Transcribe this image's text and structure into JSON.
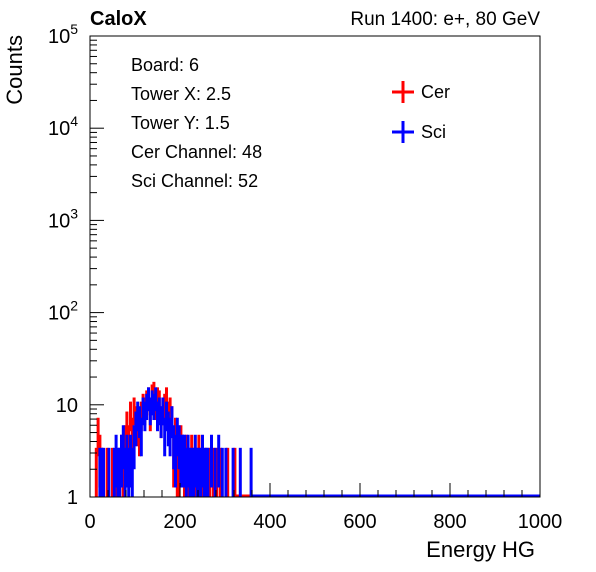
{
  "header": {
    "left_label": "CaloX",
    "right_label": "Run 1400: e+, 80 GeV"
  },
  "info_box": {
    "lines": [
      "Board: 6",
      "Tower X: 2.5",
      "Tower Y: 1.5",
      "Cer Channel: 48",
      "Sci Channel: 52"
    ]
  },
  "colors": {
    "cer": "#ff0000",
    "sci": "#0000ff",
    "axis": "#000000"
  },
  "chart_data": {
    "type": "histogram",
    "title": "",
    "xlabel": "Energy HG",
    "ylabel": "Counts",
    "xlim": [
      0,
      1000
    ],
    "ylim": [
      1,
      100000
    ],
    "yscale": "log",
    "grid": false,
    "legend_position": "top-right",
    "bin_width": 4,
    "x_ticks": [
      0,
      200,
      400,
      600,
      800,
      1000
    ],
    "x_tick_labels": [
      "0",
      "200",
      "400",
      "600",
      "800",
      "1000"
    ],
    "y_ticks": [
      1,
      10,
      100,
      1000,
      10000,
      100000
    ],
    "y_tick_labels": [
      {
        "base": "1",
        "exp": ""
      },
      {
        "base": "10",
        "exp": ""
      },
      {
        "base": "10",
        "exp": "2"
      },
      {
        "base": "10",
        "exp": "3"
      },
      {
        "base": "10",
        "exp": "4"
      },
      {
        "base": "10",
        "exp": "5"
      }
    ],
    "series": [
      {
        "name": "Cer",
        "color": "#ff0000",
        "bins": [
          [
            12,
            2
          ],
          [
            16,
            5
          ],
          [
            20,
            3
          ],
          [
            24,
            2
          ],
          [
            36,
            2
          ],
          [
            48,
            2
          ],
          [
            56,
            2
          ],
          [
            64,
            2
          ],
          [
            68,
            3
          ],
          [
            72,
            1.5
          ],
          [
            76,
            4
          ],
          [
            80,
            6
          ],
          [
            84,
            4
          ],
          [
            88,
            8
          ],
          [
            92,
            5
          ],
          [
            96,
            9
          ],
          [
            100,
            7
          ],
          [
            104,
            6
          ],
          [
            108,
            5
          ],
          [
            112,
            8
          ],
          [
            116,
            10
          ],
          [
            120,
            9
          ],
          [
            124,
            11
          ],
          [
            128,
            12
          ],
          [
            132,
            8
          ],
          [
            136,
            13
          ],
          [
            140,
            14
          ],
          [
            144,
            10
          ],
          [
            148,
            12
          ],
          [
            152,
            11
          ],
          [
            156,
            7
          ],
          [
            160,
            9
          ],
          [
            164,
            10
          ],
          [
            168,
            12
          ],
          [
            172,
            8
          ],
          [
            176,
            9
          ],
          [
            180,
            7
          ],
          [
            184,
            3
          ],
          [
            188,
            5
          ],
          [
            192,
            2
          ],
          [
            196,
            2
          ],
          [
            200,
            4
          ],
          [
            204,
            3
          ],
          [
            208,
            2
          ],
          [
            212,
            3
          ],
          [
            216,
            2
          ],
          [
            220,
            2
          ],
          [
            224,
            3
          ],
          [
            228,
            2
          ],
          [
            232,
            2
          ],
          [
            236,
            2
          ],
          [
            240,
            3
          ],
          [
            244,
            2
          ],
          [
            248,
            2
          ],
          [
            256,
            2
          ],
          [
            264,
            2
          ],
          [
            272,
            2
          ],
          [
            280,
            2
          ],
          [
            288,
            2
          ],
          [
            304,
            2
          ],
          [
            320,
            2
          ]
        ]
      },
      {
        "name": "Sci",
        "color": "#0000ff",
        "bins": [
          [
            20,
            2
          ],
          [
            24,
            2
          ],
          [
            28,
            2
          ],
          [
            40,
            2
          ],
          [
            52,
            2
          ],
          [
            56,
            3
          ],
          [
            60,
            2
          ],
          [
            64,
            2
          ],
          [
            68,
            3
          ],
          [
            72,
            4
          ],
          [
            76,
            2
          ],
          [
            80,
            3
          ],
          [
            84,
            2
          ],
          [
            88,
            3
          ],
          [
            92,
            2
          ],
          [
            96,
            4
          ],
          [
            100,
            6
          ],
          [
            104,
            8
          ],
          [
            108,
            7
          ],
          [
            112,
            5
          ],
          [
            116,
            9
          ],
          [
            120,
            8
          ],
          [
            124,
            10
          ],
          [
            128,
            12
          ],
          [
            132,
            9
          ],
          [
            136,
            11
          ],
          [
            140,
            10
          ],
          [
            144,
            12
          ],
          [
            148,
            8
          ],
          [
            152,
            9
          ],
          [
            156,
            7
          ],
          [
            160,
            9
          ],
          [
            164,
            5
          ],
          [
            168,
            8
          ],
          [
            172,
            6
          ],
          [
            176,
            5
          ],
          [
            180,
            7
          ],
          [
            184,
            4
          ],
          [
            188,
            3
          ],
          [
            192,
            5
          ],
          [
            196,
            4
          ],
          [
            200,
            3
          ],
          [
            204,
            3
          ],
          [
            208,
            3
          ],
          [
            212,
            2
          ],
          [
            216,
            3
          ],
          [
            220,
            2
          ],
          [
            224,
            2
          ],
          [
            228,
            2
          ],
          [
            232,
            3
          ],
          [
            236,
            2
          ],
          [
            240,
            2
          ],
          [
            244,
            2
          ],
          [
            248,
            3
          ],
          [
            252,
            2
          ],
          [
            256,
            2
          ],
          [
            260,
            2
          ],
          [
            268,
            3
          ],
          [
            276,
            2
          ],
          [
            284,
            3
          ],
          [
            292,
            2
          ],
          [
            300,
            2
          ],
          [
            316,
            2
          ],
          [
            332,
            2
          ],
          [
            356,
            2
          ]
        ]
      }
    ]
  }
}
